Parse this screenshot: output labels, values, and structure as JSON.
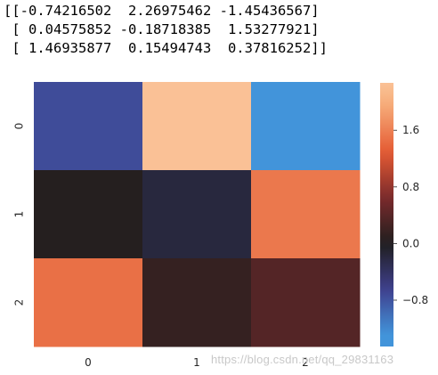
{
  "printed_array": {
    "lines": [
      "[[-0.74216502  2.26975462 -1.45436567]",
      " [ 0.04575852 -0.18718385  1.53277921]",
      " [ 1.46935877  0.15494743  0.37816252]]"
    ]
  },
  "chart_data": {
    "type": "heatmap",
    "title": "",
    "xlabel": "",
    "ylabel": "",
    "x_categories": [
      "0",
      "1",
      "2"
    ],
    "y_categories": [
      "0",
      "1",
      "2"
    ],
    "values": [
      [
        -0.74216502,
        2.26975462,
        -1.45436567
      ],
      [
        0.04575852,
        -0.18718385,
        1.53277921
      ],
      [
        1.46935877,
        0.15494743,
        0.37816252
      ]
    ],
    "colorbar": {
      "range": [
        -1.45436567,
        2.26975462
      ],
      "ticks": [
        -0.8,
        0.0,
        0.8,
        1.6
      ],
      "tick_labels": [
        "−0.8",
        "0.0",
        "0.8",
        "1.6"
      ],
      "center": 0.0,
      "colormap": "icefire",
      "colormap_stops": [
        {
          "v": -1.0,
          "color": "#4294da"
        },
        {
          "v": -0.5,
          "color": "#3f3f8d"
        },
        {
          "v": 0.0,
          "color": "#1f1e1e"
        },
        {
          "v": 0.5,
          "color": "#7a2a2c"
        },
        {
          "v": 1.0,
          "color": "#e45a33"
        },
        {
          "v": 1.55,
          "color": "#f7b07d"
        },
        {
          "v": 2.0,
          "color": "#fdd5b2"
        }
      ]
    },
    "grid": false,
    "legend": "colorbar-right"
  },
  "watermark": {
    "text": "https://blog.csdn.net/qq_29831163"
  }
}
